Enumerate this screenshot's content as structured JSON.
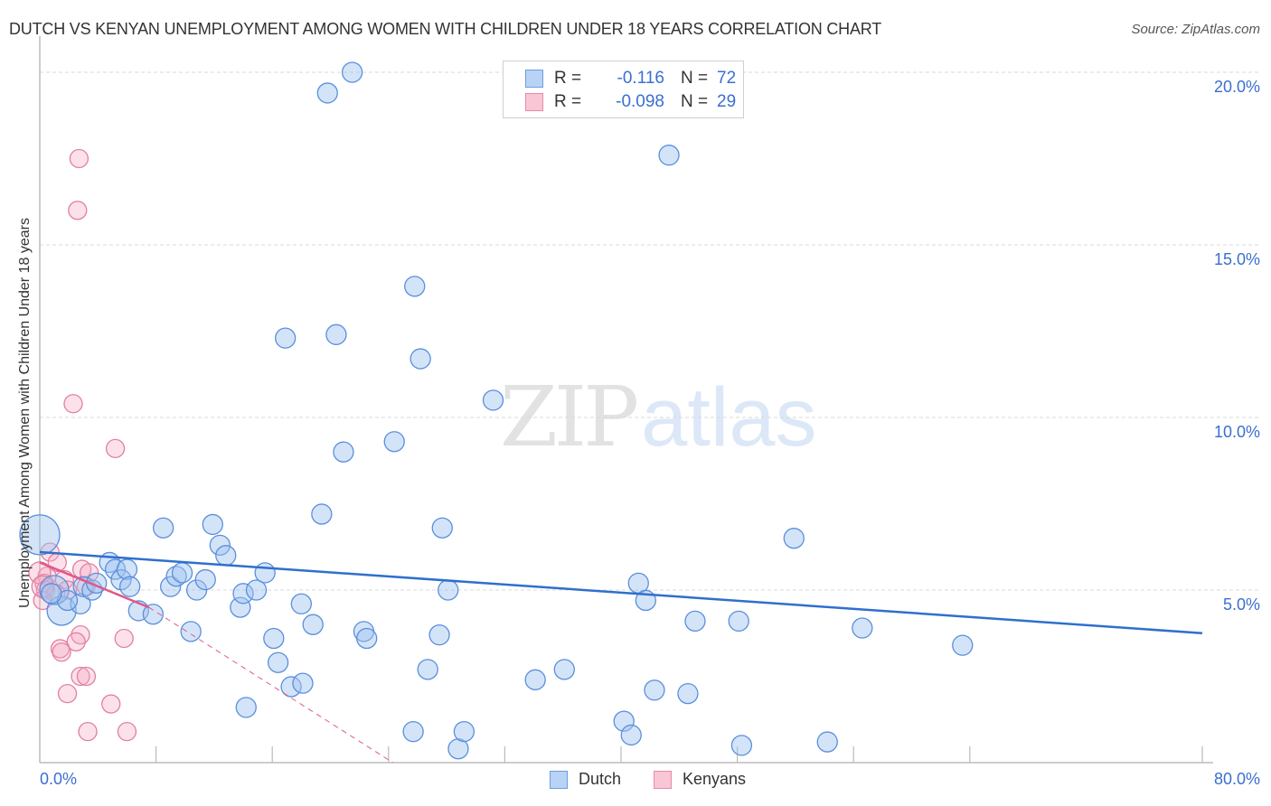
{
  "header": {
    "title": "DUTCH VS KENYAN UNEMPLOYMENT AMONG WOMEN WITH CHILDREN UNDER 18 YEARS CORRELATION CHART",
    "source": "Source: ZipAtlas.com"
  },
  "watermark": {
    "zip": "ZIP",
    "atlas": "atlas"
  },
  "legend": {
    "rows": [
      {
        "r_label": "R =",
        "r_value": "-0.116",
        "n_label": "N =",
        "n_value": "72",
        "fill": "#b8d3f5",
        "stroke": "#6a9de0"
      },
      {
        "r_label": "R =",
        "r_value": "-0.098",
        "n_label": "N =",
        "n_value": "29",
        "fill": "#f9c6d6",
        "stroke": "#e88aa8"
      }
    ]
  },
  "bottom_legend": [
    {
      "label": "Dutch",
      "fill": "#b8d3f5",
      "stroke": "#6a9de0"
    },
    {
      "label": "Kenyans",
      "fill": "#f9c6d6",
      "stroke": "#e88aa8"
    }
  ],
  "colors": {
    "dutch_fill": "rgba(160,196,240,0.45)",
    "dutch_stroke": "#5a8fdc",
    "dutch_trend": "#2f6fce",
    "kenyan_fill": "rgba(245,170,196,0.35)",
    "kenyan_stroke": "#e27f9f",
    "kenyan_trend": "#e0578a",
    "grid": "#d8d8d8",
    "axis": "#bbbbbb",
    "tick_label": "#3a6fd0"
  },
  "chart_data": {
    "type": "scatter",
    "title": "DUTCH VS KENYAN UNEMPLOYMENT AMONG WOMEN WITH CHILDREN UNDER 18 YEARS CORRELATION CHART",
    "xlabel": "",
    "ylabel": "Unemployment Among Women with Children Under 18 years",
    "xlim": [
      0,
      80
    ],
    "ylim": [
      0,
      20
    ],
    "x_tick_labels": [
      "0.0%",
      "80.0%"
    ],
    "y_tick_labels": [
      "5.0%",
      "10.0%",
      "15.0%",
      "20.0%"
    ],
    "y_ticks": [
      5,
      10,
      15,
      20
    ],
    "grid": true,
    "legend_position": "top-center",
    "series": [
      {
        "name": "Dutch",
        "R": -0.116,
        "N": 72,
        "trend": {
          "x0": 0,
          "y0": 6.1,
          "x1": 80,
          "y1": 3.75
        },
        "points": [
          [
            0.0,
            6.6,
            22
          ],
          [
            1.5,
            4.4,
            16
          ],
          [
            1.0,
            5.0,
            16
          ],
          [
            2.8,
            4.6,
            11
          ],
          [
            3.0,
            5.1,
            11
          ],
          [
            4.8,
            5.8,
            11
          ],
          [
            5.2,
            5.6,
            11
          ],
          [
            3.6,
            5.0,
            11
          ],
          [
            5.6,
            5.3,
            11
          ],
          [
            6.0,
            5.6,
            11
          ],
          [
            6.2,
            5.1,
            11
          ],
          [
            6.8,
            4.4,
            11
          ],
          [
            7.8,
            4.3,
            11
          ],
          [
            8.5,
            6.8,
            11
          ],
          [
            9.0,
            5.1,
            11
          ],
          [
            9.4,
            5.4,
            11
          ],
          [
            9.8,
            5.5,
            11
          ],
          [
            10.4,
            3.8,
            11
          ],
          [
            10.8,
            5.0,
            11
          ],
          [
            11.4,
            5.3,
            11
          ],
          [
            11.9,
            6.9,
            11
          ],
          [
            12.4,
            6.3,
            11
          ],
          [
            12.8,
            6.0,
            11
          ],
          [
            13.8,
            4.5,
            11
          ],
          [
            14.0,
            4.9,
            11
          ],
          [
            14.2,
            1.6,
            11
          ],
          [
            14.9,
            5.0,
            11
          ],
          [
            15.5,
            5.5,
            11
          ],
          [
            16.1,
            3.6,
            11
          ],
          [
            16.4,
            2.9,
            11
          ],
          [
            16.9,
            12.3,
            11
          ],
          [
            17.3,
            2.2,
            11
          ],
          [
            18.1,
            2.3,
            11
          ],
          [
            18.0,
            4.6,
            11
          ],
          [
            18.8,
            4.0,
            11
          ],
          [
            19.4,
            7.2,
            11
          ],
          [
            19.8,
            19.4,
            11
          ],
          [
            20.4,
            12.4,
            11
          ],
          [
            20.9,
            9.0,
            11
          ],
          [
            21.5,
            20.0,
            11
          ],
          [
            22.3,
            3.8,
            11
          ],
          [
            22.5,
            3.6,
            11
          ],
          [
            24.4,
            9.3,
            11
          ],
          [
            25.7,
            0.9,
            11
          ],
          [
            25.8,
            13.8,
            11
          ],
          [
            26.2,
            11.7,
            11
          ],
          [
            26.7,
            2.7,
            11
          ],
          [
            27.5,
            3.7,
            11
          ],
          [
            27.7,
            6.8,
            11
          ],
          [
            28.1,
            5.0,
            11
          ],
          [
            28.8,
            0.4,
            11
          ],
          [
            29.2,
            0.9,
            11
          ],
          [
            31.2,
            10.5,
            11
          ],
          [
            34.1,
            2.4,
            11
          ],
          [
            36.1,
            2.7,
            11
          ],
          [
            40.2,
            1.2,
            11
          ],
          [
            40.7,
            0.8,
            11
          ],
          [
            41.2,
            5.2,
            11
          ],
          [
            41.7,
            4.7,
            11
          ],
          [
            42.3,
            2.1,
            11
          ],
          [
            43.3,
            17.6,
            11
          ],
          [
            44.6,
            2.0,
            11
          ],
          [
            45.1,
            4.1,
            11
          ],
          [
            48.3,
            0.5,
            11
          ],
          [
            48.1,
            4.1,
            11
          ],
          [
            51.9,
            6.5,
            11
          ],
          [
            54.2,
            0.6,
            11
          ],
          [
            56.6,
            3.9,
            11
          ],
          [
            63.5,
            3.4,
            11
          ],
          [
            1.9,
            4.7,
            11
          ],
          [
            3.9,
            5.2,
            11
          ],
          [
            0.8,
            4.9,
            11
          ]
        ]
      },
      {
        "name": "Kenyans",
        "R": -0.098,
        "N": 29,
        "trend": {
          "x0": 0,
          "y0": 5.8,
          "x1": 7.5,
          "y1": 4.5,
          "dash_x1": 24.3,
          "dash_y1": 0.0
        },
        "points": [
          [
            2.7,
            17.5,
            10
          ],
          [
            2.6,
            16.0,
            10
          ],
          [
            2.3,
            10.4,
            10
          ],
          [
            5.2,
            9.1,
            10
          ],
          [
            0.7,
            6.1,
            10
          ],
          [
            1.2,
            5.8,
            10
          ],
          [
            2.9,
            5.6,
            10
          ],
          [
            3.4,
            5.5,
            10
          ],
          [
            0.5,
            5.4,
            10
          ],
          [
            1.7,
            5.3,
            10
          ],
          [
            0.3,
            5.2,
            10
          ],
          [
            1.9,
            5.0,
            10
          ],
          [
            0.4,
            5.0,
            10
          ],
          [
            1.1,
            4.9,
            10
          ],
          [
            3.2,
            5.1,
            10
          ],
          [
            0.2,
            4.7,
            10
          ],
          [
            2.8,
            3.7,
            10
          ],
          [
            2.5,
            3.5,
            10
          ],
          [
            5.8,
            3.6,
            10
          ],
          [
            1.4,
            3.3,
            10
          ],
          [
            1.5,
            3.2,
            10
          ],
          [
            2.8,
            2.5,
            10
          ],
          [
            3.2,
            2.5,
            10
          ],
          [
            1.9,
            2.0,
            10
          ],
          [
            4.9,
            1.7,
            10
          ],
          [
            3.3,
            0.9,
            10
          ],
          [
            6.0,
            0.9,
            10
          ],
          [
            0.0,
            5.5,
            12
          ],
          [
            0.2,
            5.1,
            12
          ]
        ]
      }
    ]
  }
}
